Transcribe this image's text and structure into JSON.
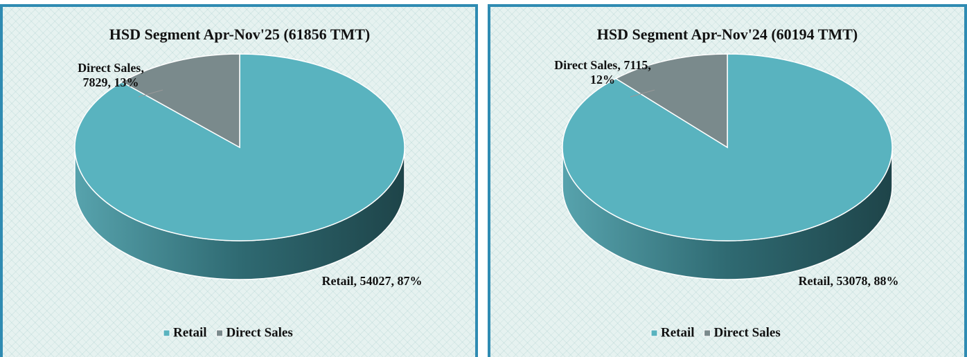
{
  "chart_data": [
    {
      "type": "pie3d",
      "title": "HSD Segment Apr-Nov'25 (61856 TMT)",
      "categories": [
        "Retail",
        "Direct Sales"
      ],
      "values": [
        54027,
        7829
      ],
      "value_labels": [
        "Retail, 54027, 87%",
        "Direct Sales, 7829, 13%"
      ],
      "colors": [
        "#59b3bf",
        "#7a8a8c"
      ],
      "legend": "bottom"
    },
    {
      "type": "pie3d",
      "title": "HSD Segment Apr-Nov'24 (60194 TMT)",
      "categories": [
        "Retail",
        "Direct Sales"
      ],
      "values": [
        53078,
        7115
      ],
      "value_labels": [
        "Retail, 53078, 88%",
        "Direct Sales, 7115, 12%"
      ],
      "colors": [
        "#59b3bf",
        "#7a8a8c"
      ],
      "legend": "bottom"
    }
  ]
}
